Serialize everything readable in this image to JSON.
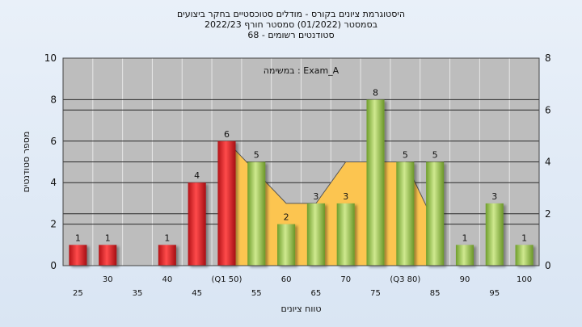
{
  "title_lines": [
    "היסטוגרמת ציונים בקורס - מודלים סטוכסטיים בחקר ביצועים",
    "בסמסטר  (01/2022)  סמסטר חורף  2022/23",
    "סטודנטים רשומים - 68"
  ],
  "chart_data": {
    "type": "bar",
    "title": "היסטוגרמת ציונים בקורס - מודלים סטוכסטיים בחקר ביצועים",
    "annotation": "במשימה : Exam_A",
    "xlabel": "טווח ציונים",
    "ylabel": "מספר סטודנטים",
    "ylim": [
      0,
      10
    ],
    "yticks": [
      0,
      2,
      4,
      6,
      8,
      10
    ],
    "y2lim": [
      0,
      8
    ],
    "y2ticks": [
      0,
      2,
      4,
      6,
      8
    ],
    "grid": true,
    "categories": [
      "25",
      "30",
      "35",
      "40",
      "45",
      "(Q1 50)",
      "55",
      "60",
      "65",
      "70",
      "75",
      "(Q3 80)",
      "85",
      "90",
      "95",
      "100"
    ],
    "values": [
      1,
      1,
      0,
      1,
      4,
      6,
      5,
      2,
      3,
      3,
      8,
      5,
      5,
      1,
      3,
      1
    ],
    "bar_colors": [
      "#d8232a",
      "#d8232a",
      "#d8232a",
      "#d8232a",
      "#d8232a",
      "#d8232a",
      "#8dc63f",
      "#8dc63f",
      "#8dc63f",
      "#8dc63f",
      "#8dc63f",
      "#8dc63f",
      "#8dc63f",
      "#8dc63f",
      "#8dc63f",
      "#8dc63f"
    ],
    "area_series": [
      {
        "x": "(Q1 50)",
        "y": 6
      },
      {
        "x": "60",
        "y": 3
      },
      {
        "x": "65",
        "y": 3
      },
      {
        "x": "70",
        "y": 5
      },
      {
        "x": "(Q3 80)",
        "y": 5
      },
      {
        "x": "85",
        "y": 2
      }
    ],
    "area_color": "#fcc550"
  }
}
